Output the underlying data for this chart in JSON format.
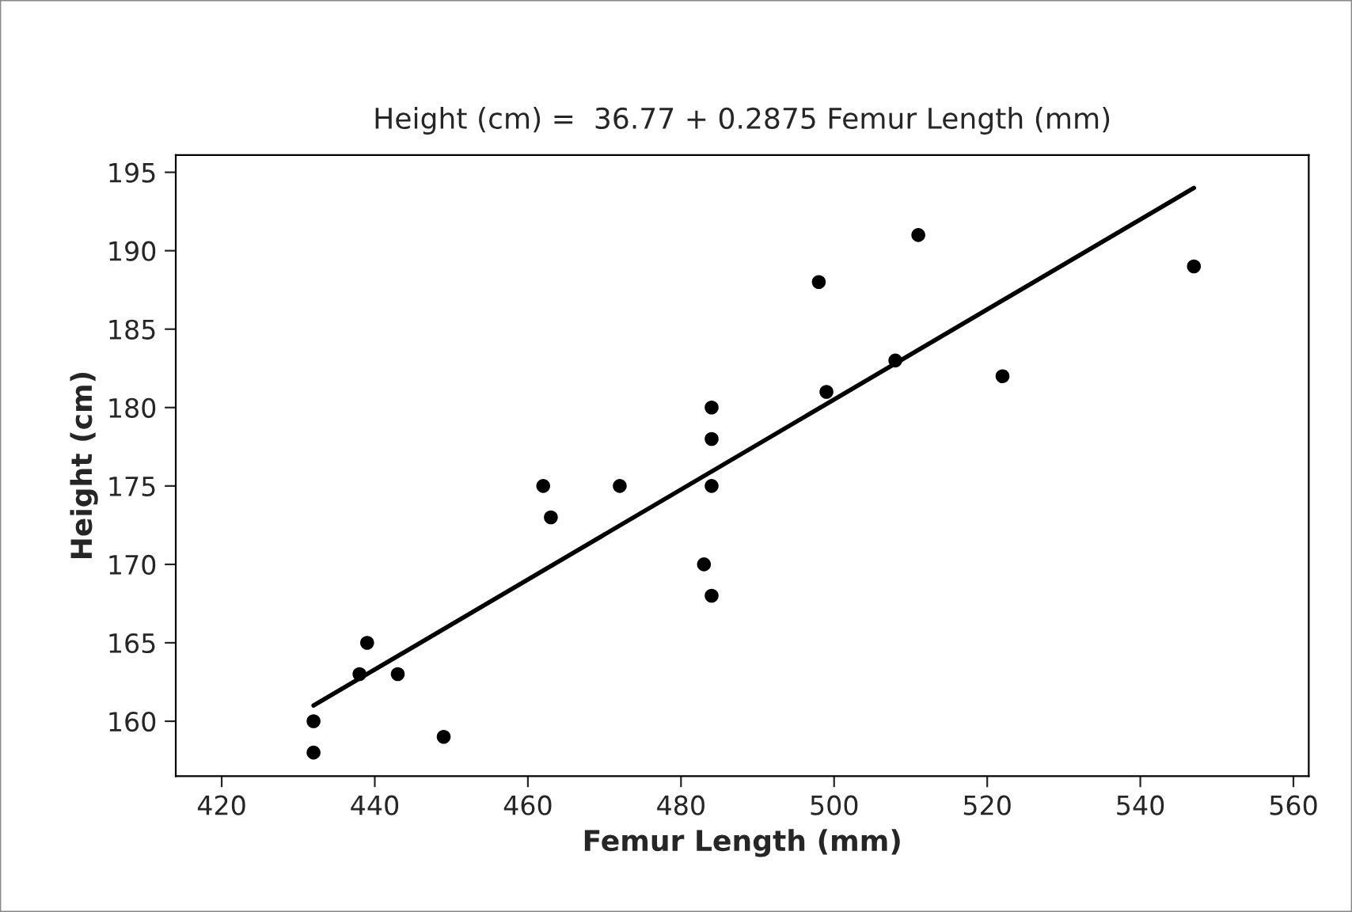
{
  "chart_data": {
    "type": "scatter",
    "title": "Height (cm) =  36.77 + 0.2875 Femur Length (mm)",
    "xlabel": "Femur Length (mm)",
    "ylabel": "Height (cm)",
    "series": [
      {
        "color": "#000000",
        "marker": "circle",
        "x": [
          432,
          432,
          438,
          439,
          443,
          449,
          462,
          463,
          472,
          483,
          484,
          484,
          484,
          484,
          498,
          499,
          508,
          511,
          522,
          547
        ],
        "values": [
          158,
          160,
          163,
          165,
          163,
          159,
          175,
          173,
          175,
          170,
          168,
          175,
          178,
          180,
          188,
          181,
          183,
          191,
          182,
          189
        ]
      },
      {
        "type": "line",
        "color": "#000000",
        "marker": "none",
        "line_style": "solid",
        "x": [
          432,
          547
        ],
        "values": [
          161,
          194
        ]
      }
    ],
    "xlim": [
      414,
      562
    ],
    "ylim": [
      156.5,
      196.1
    ],
    "xticks": [
      420,
      440,
      460,
      480,
      500,
      520,
      540,
      560
    ],
    "yticks": [
      160,
      165,
      170,
      175,
      180,
      185,
      190,
      195
    ],
    "grid": false,
    "legend": false
  }
}
